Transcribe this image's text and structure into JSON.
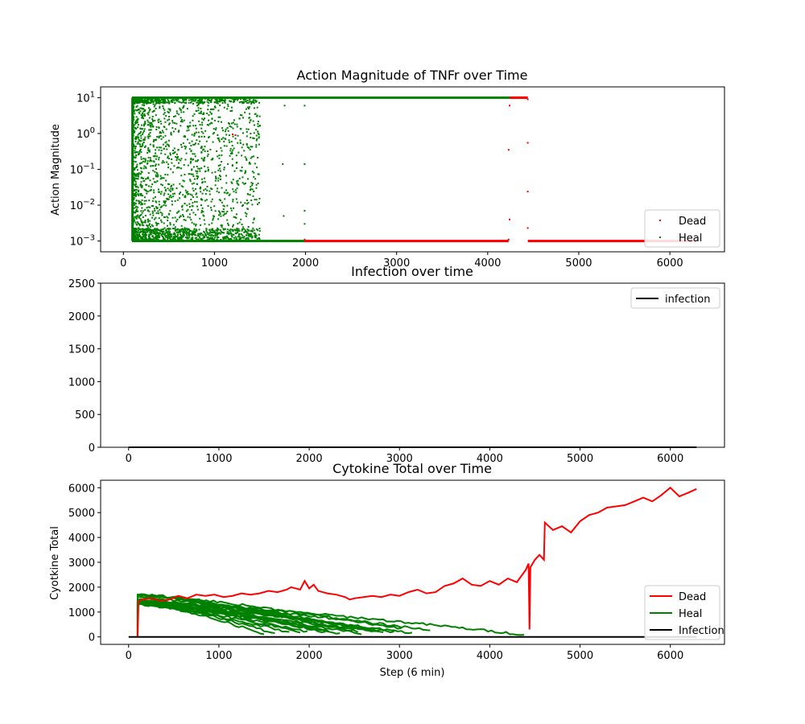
{
  "chart_data": [
    {
      "type": "scatter",
      "title": "Action Magnitude of TNFr over Time",
      "xlabel": "",
      "ylabel": "Action Magnitude",
      "xlim": [
        -250,
        6600
      ],
      "ylim": [
        0.0005,
        20
      ],
      "yscale": "log",
      "xticks": [
        0,
        1000,
        2000,
        3000,
        4000,
        5000,
        6000
      ],
      "yticks": [
        {
          "value": 10,
          "label": "10",
          "exp": "1"
        },
        {
          "value": 1,
          "label": "10",
          "exp": "0"
        },
        {
          "value": 0.1,
          "label": "10",
          "exp": "−1"
        },
        {
          "value": 0.01,
          "label": "10",
          "exp": "−2"
        },
        {
          "value": 0.001,
          "label": "10",
          "exp": "−3"
        }
      ],
      "legend": {
        "placement": "lower-right",
        "entries": [
          "Dead",
          "Heal"
        ]
      },
      "colors": {
        "Dead": "#ff0000",
        "Heal": "#008000"
      },
      "series": [
        {
          "name": "Dead",
          "color": "#ff0000",
          "bands": [
            {
              "x0": 1990,
              "x1": 4230,
              "y": 0.001
            },
            {
              "x0": 4440,
              "x1": 6290,
              "y": 0.001
            },
            {
              "x0": 4240,
              "x1": 4440,
              "y": 10
            }
          ],
          "points": [
            [
              1200,
              0.95
            ],
            [
              1230,
              0.9
            ],
            [
              4230,
              0.35
            ],
            [
              4240,
              6.0
            ],
            [
              4240,
              0.004
            ],
            [
              4440,
              0.55
            ],
            [
              4440,
              0.024
            ],
            [
              4440,
              0.0023
            ],
            [
              4440,
              9.0
            ],
            [
              4230,
              0.0011
            ],
            [
              1990,
              0.0011
            ]
          ]
        },
        {
          "name": "Heal",
          "color": "#008000",
          "bands": [
            {
              "x0": 95,
              "x1": 4440,
              "y": 10
            },
            {
              "x0": 95,
              "x1": 2000,
              "y": 0.001
            }
          ],
          "vertical_edge": {
            "x": 100,
            "y0": 0.001,
            "y1": 10
          },
          "scatter_region": {
            "x0": 100,
            "x1": 1500,
            "y0": 0.001,
            "y1": 10
          },
          "points": [
            [
              1750,
              0.14
            ],
            [
              1760,
              0.005
            ],
            [
              1770,
              6.0
            ],
            [
              1990,
              0.14
            ],
            [
              1990,
              0.007
            ],
            [
              1990,
              0.003
            ],
            [
              1990,
              6.0
            ],
            [
              1290,
              0.004
            ],
            [
              1310,
              0.06
            ],
            [
              1370,
              0.02
            ],
            [
              1420,
              0.04
            ],
            [
              1460,
              0.03
            ],
            [
              1480,
              1.0
            ],
            [
              1490,
              0.8
            ]
          ]
        }
      ]
    },
    {
      "type": "line",
      "title": "Infection over time",
      "xlabel": "",
      "ylabel": "",
      "xlim": [
        -310,
        6600
      ],
      "ylim": [
        0,
        2500
      ],
      "xticks": [
        0,
        1000,
        2000,
        3000,
        4000,
        5000,
        6000
      ],
      "yticks": [
        0,
        500,
        1000,
        1500,
        2000,
        2500
      ],
      "legend": {
        "placement": "top-right",
        "entries": [
          "infection"
        ]
      },
      "colors": {
        "infection": "#000000"
      },
      "series": [
        {
          "name": "infection",
          "color": "#000000",
          "x": [
            0,
            6290
          ],
          "y": [
            0,
            0
          ]
        }
      ]
    },
    {
      "type": "line",
      "title": "Cytokine Total over Time",
      "xlabel": "Step (6 min)",
      "ylabel": "Cyotkine Total",
      "xlim": [
        -310,
        6600
      ],
      "ylim": [
        -300,
        6300
      ],
      "xticks": [
        0,
        1000,
        2000,
        3000,
        4000,
        5000,
        6000
      ],
      "yticks": [
        0,
        1000,
        2000,
        3000,
        4000,
        5000,
        6000
      ],
      "legend": {
        "placement": "lower-right",
        "entries": [
          "Dead",
          "Heal",
          "Infection"
        ]
      },
      "colors": {
        "Dead": "#ff0000",
        "Heal": "#008000",
        "Infection": "#000000"
      },
      "series": [
        {
          "name": "Dead",
          "color": "#ff0000",
          "x": [
            100,
            110,
            150,
            250,
            350,
            450,
            550,
            650,
            750,
            850,
            950,
            1050,
            1150,
            1250,
            1350,
            1450,
            1550,
            1650,
            1750,
            1800,
            1850,
            1900,
            1950,
            2000,
            2050,
            2100,
            2200,
            2300,
            2400,
            2450,
            2500,
            2600,
            2700,
            2800,
            2900,
            3000,
            3100,
            3200,
            3300,
            3400,
            3500,
            3600,
            3700,
            3800,
            3900,
            4000,
            4100,
            4200,
            4300,
            4400,
            4430,
            4440,
            4450,
            4500,
            4550,
            4600,
            4610,
            4700,
            4800,
            4900,
            5000,
            5100,
            5200,
            5300,
            5400,
            5500,
            5600,
            5700,
            5800,
            5900,
            6000,
            6100,
            6200,
            6290
          ],
          "y": [
            0,
            1450,
            1500,
            1550,
            1450,
            1500,
            1650,
            1550,
            1700,
            1650,
            1700,
            1600,
            1650,
            1750,
            1700,
            1750,
            1850,
            1800,
            1900,
            2000,
            1950,
            1900,
            2250,
            1950,
            2100,
            1850,
            1750,
            1700,
            1600,
            1500,
            1550,
            1600,
            1650,
            1600,
            1700,
            1650,
            1800,
            1900,
            1750,
            1800,
            2050,
            2150,
            2350,
            2100,
            2050,
            2250,
            2100,
            2350,
            2200,
            2700,
            2950,
            300,
            2800,
            3100,
            3300,
            3100,
            4600,
            4300,
            4450,
            4200,
            4650,
            4900,
            5000,
            5200,
            5250,
            5300,
            5450,
            5600,
            5450,
            5700,
            6000,
            5650,
            5800,
            5950
          ]
        },
        {
          "name": "Heal",
          "color": "#008000",
          "note_trajectories": "many trajectories starting near 1500 at step ~100 and decaying",
          "end_steps": [
            1500,
            1650,
            1800,
            1900,
            2000,
            2100,
            2200,
            2250,
            2350,
            2450,
            2500,
            2550,
            2600,
            2700,
            2750,
            2850,
            2950,
            3050,
            3150,
            3350,
            4400
          ],
          "peak": 1600
        },
        {
          "name": "Infection",
          "color": "#000000",
          "x": [
            0,
            6290
          ],
          "y": [
            0,
            0
          ]
        }
      ]
    }
  ]
}
